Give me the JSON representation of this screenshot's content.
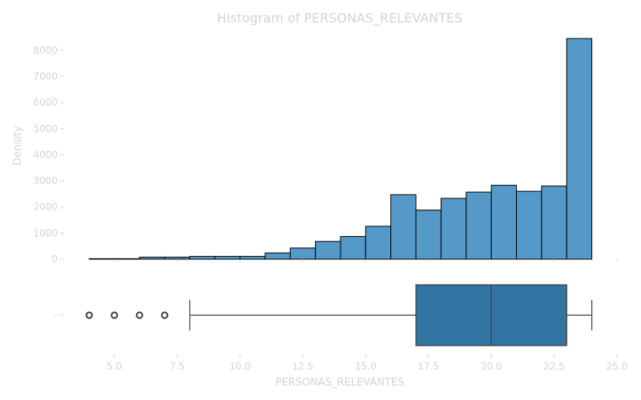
{
  "chart_data": [
    {
      "type": "bar",
      "title": "Histogram of PERSONAS_RELEVANTES",
      "xlabel": "",
      "ylabel": "Density",
      "xlim": [
        3.0,
        25.0
      ],
      "ylim": [
        0,
        8700
      ],
      "x_ticks": [
        5.0,
        7.5,
        10.0,
        12.5,
        15.0,
        17.5,
        20.0,
        22.5,
        25.0
      ],
      "y_ticks": [
        0,
        1000,
        2000,
        3000,
        4000,
        5000,
        6000,
        7000,
        8000
      ],
      "bins": [
        {
          "x0": 4,
          "x1": 5,
          "value": 20
        },
        {
          "x0": 5,
          "x1": 6,
          "value": 20
        },
        {
          "x0": 6,
          "x1": 7,
          "value": 80
        },
        {
          "x0": 7,
          "x1": 8,
          "value": 80
        },
        {
          "x0": 8,
          "x1": 9,
          "value": 110
        },
        {
          "x0": 9,
          "x1": 10,
          "value": 110
        },
        {
          "x0": 10,
          "x1": 11,
          "value": 110
        },
        {
          "x0": 11,
          "x1": 12,
          "value": 240
        },
        {
          "x0": 12,
          "x1": 13,
          "value": 430
        },
        {
          "x0": 13,
          "x1": 14,
          "value": 680
        },
        {
          "x0": 14,
          "x1": 15,
          "value": 870
        },
        {
          "x0": 15,
          "x1": 16,
          "value": 1260
        },
        {
          "x0": 16,
          "x1": 17,
          "value": 2470
        },
        {
          "x0": 17,
          "x1": 18,
          "value": 1880
        },
        {
          "x0": 18,
          "x1": 19,
          "value": 2330
        },
        {
          "x0": 19,
          "x1": 20,
          "value": 2570
        },
        {
          "x0": 20,
          "x1": 21,
          "value": 2830
        },
        {
          "x0": 21,
          "x1": 22,
          "value": 2600
        },
        {
          "x0": 22,
          "x1": 23,
          "value": 2800
        },
        {
          "x0": 23,
          "x1": 24,
          "value": 8450
        }
      ],
      "bar_color": "#5499c7",
      "edge_color": "#000000",
      "grid": false
    },
    {
      "type": "box",
      "xlabel": "PERSONAS_RELEVANTES",
      "y_tick_label": "-",
      "min_whisker": 8,
      "q1": 17,
      "median": 20,
      "q3": 23,
      "max_whisker": 24,
      "outliers": [
        4,
        5,
        6,
        7
      ],
      "box_color": "#3274a1",
      "line_color": "#3d3d3d"
    }
  ],
  "colors": {
    "text": "#d3d3d3",
    "tick": "#d3d3d3",
    "background": "#ffffff"
  }
}
